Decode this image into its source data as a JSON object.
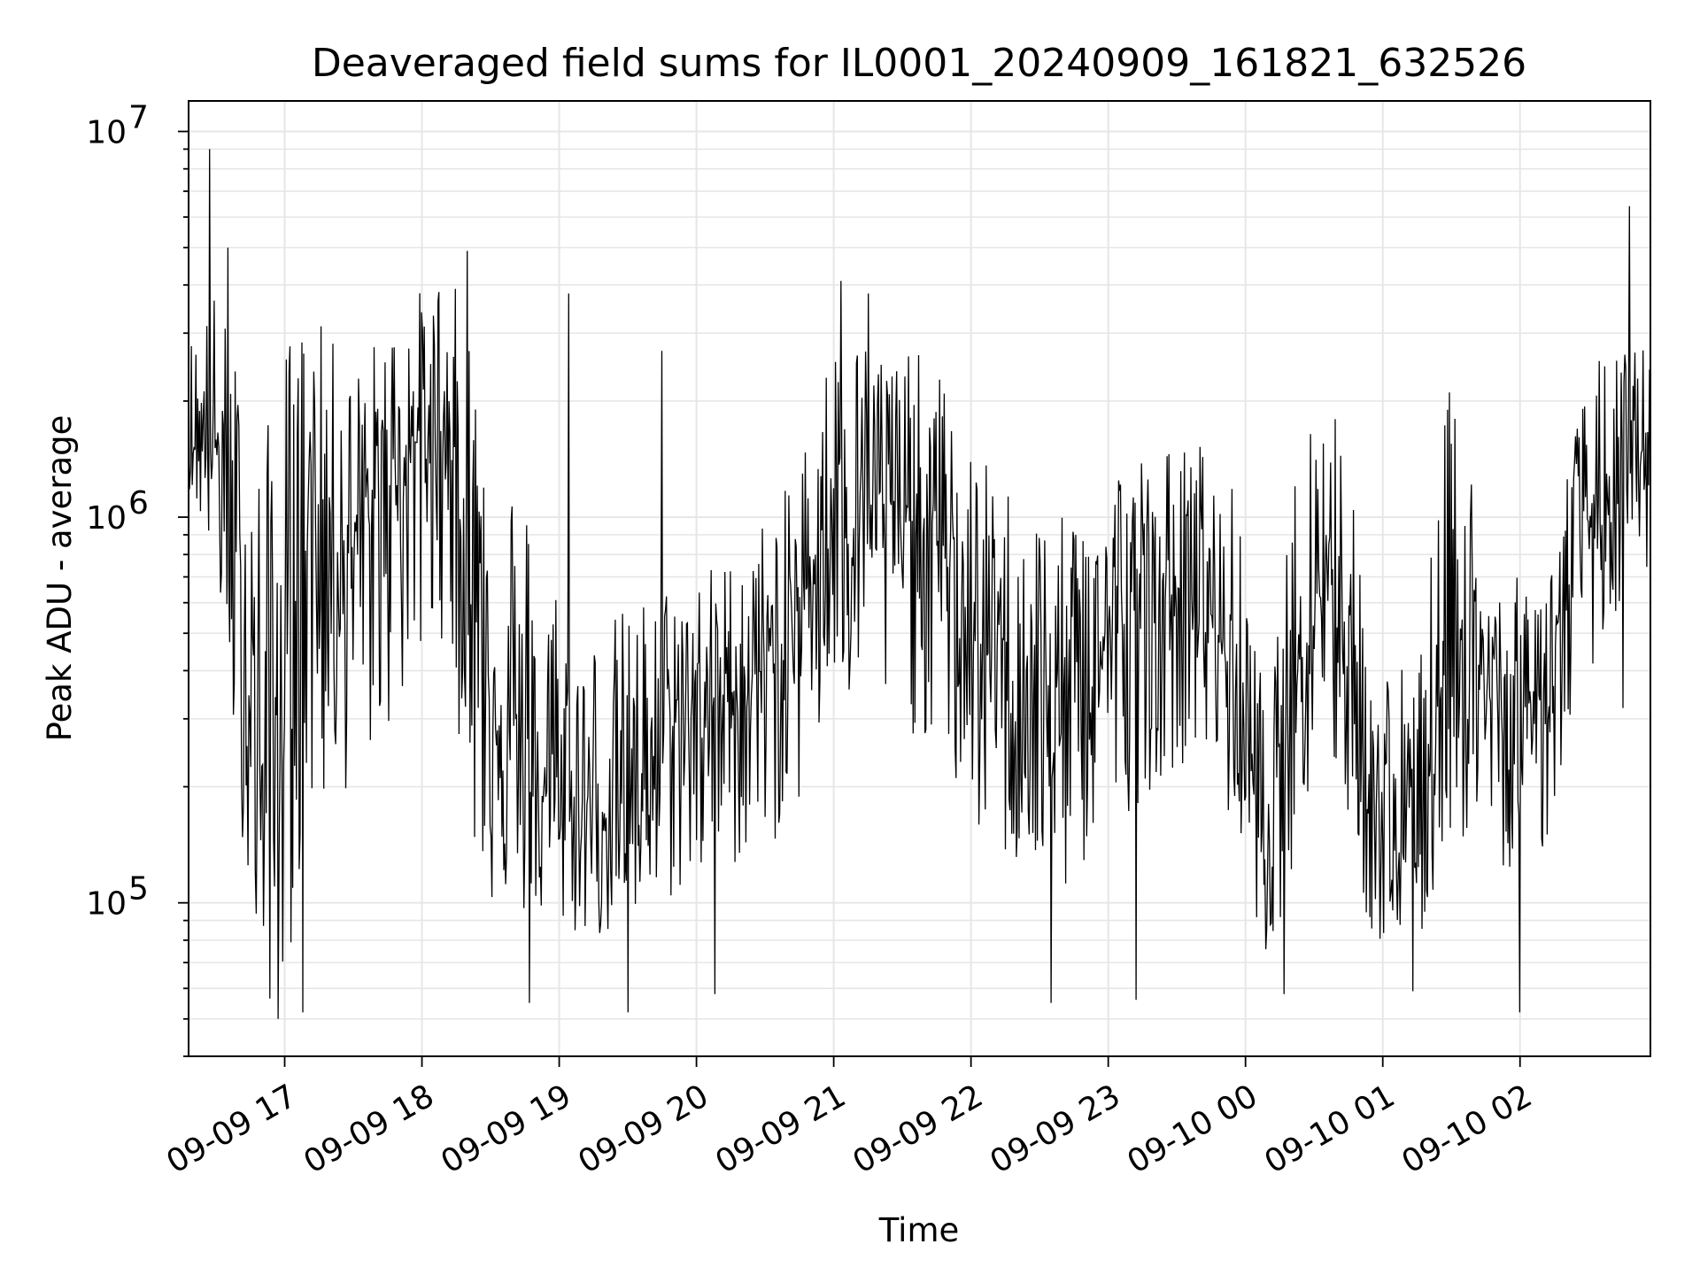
{
  "chart_data": {
    "type": "line",
    "title": "Deaveraged field sums for IL0001_20240909_161821_632526",
    "xlabel": "Time",
    "ylabel": "Peak ADU - average",
    "yscale": "log",
    "ylim": [
      40000,
      12000000
    ],
    "xlim": [
      "2024-09-09 16:18",
      "2024-09-10 02:57"
    ],
    "y_ticks": [
      {
        "base": "10",
        "exp": "5",
        "value": 100000
      },
      {
        "base": "10",
        "exp": "6",
        "value": 1000000
      },
      {
        "base": "10",
        "exp": "7",
        "value": 10000000
      }
    ],
    "x_ticks": [
      {
        "label": "09-09 17",
        "time": "2024-09-09 17:00"
      },
      {
        "label": "09-09 18",
        "time": "2024-09-09 18:00"
      },
      {
        "label": "09-09 19",
        "time": "2024-09-09 19:00"
      },
      {
        "label": "09-09 20",
        "time": "2024-09-09 20:00"
      },
      {
        "label": "09-09 21",
        "time": "2024-09-09 21:00"
      },
      {
        "label": "09-09 22",
        "time": "2024-09-09 22:00"
      },
      {
        "label": "09-09 23",
        "time": "2024-09-09 23:00"
      },
      {
        "label": "09-10 00",
        "time": "2024-09-10 00:00"
      },
      {
        "label": "09-10 01",
        "time": "2024-09-10 01:00"
      },
      {
        "label": "09-10 02",
        "time": "2024-09-10 02:00"
      }
    ],
    "grid": true,
    "line_color": "#000000",
    "series": [
      {
        "name": "",
        "envelope": [
          {
            "t": "2024-09-09 16:18",
            "lo": 1200000,
            "mid": 1600000,
            "hi": 3000000
          },
          {
            "t": "2024-09-09 16:30",
            "lo": 700000,
            "mid": 1500000,
            "hi": 4000000
          },
          {
            "t": "2024-09-09 16:40",
            "lo": 180000,
            "mid": 600000,
            "hi": 2500000
          },
          {
            "t": "2024-09-09 16:50",
            "lo": 50000,
            "mid": 200000,
            "hi": 1500000
          },
          {
            "t": "2024-09-09 17:00",
            "lo": 60000,
            "mid": 400000,
            "hi": 3000000
          },
          {
            "t": "2024-09-09 17:10",
            "lo": 150000,
            "mid": 1100000,
            "hi": 3500000
          },
          {
            "t": "2024-09-09 17:30",
            "lo": 200000,
            "mid": 800000,
            "hi": 2500000
          },
          {
            "t": "2024-09-09 17:50",
            "lo": 300000,
            "mid": 1500000,
            "hi": 3500000
          },
          {
            "t": "2024-09-09 18:10",
            "lo": 500000,
            "mid": 1700000,
            "hi": 4500000
          },
          {
            "t": "2024-09-09 18:25",
            "lo": 100000,
            "mid": 500000,
            "hi": 3000000
          },
          {
            "t": "2024-09-09 18:45",
            "lo": 90000,
            "mid": 200000,
            "hi": 1200000
          },
          {
            "t": "2024-09-09 19:10",
            "lo": 80000,
            "mid": 170000,
            "hi": 500000
          },
          {
            "t": "2024-09-09 19:30",
            "lo": 80000,
            "mid": 180000,
            "hi": 600000
          },
          {
            "t": "2024-09-09 19:50",
            "lo": 100000,
            "mid": 300000,
            "hi": 700000
          },
          {
            "t": "2024-09-09 20:15",
            "lo": 120000,
            "mid": 350000,
            "hi": 800000
          },
          {
            "t": "2024-09-09 20:40",
            "lo": 150000,
            "mid": 450000,
            "hi": 1200000
          },
          {
            "t": "2024-09-09 21:00",
            "lo": 300000,
            "mid": 1200000,
            "hi": 3000000
          },
          {
            "t": "2024-09-09 21:20",
            "lo": 300000,
            "mid": 1100000,
            "hi": 3000000
          },
          {
            "t": "2024-09-09 21:45",
            "lo": 250000,
            "mid": 900000,
            "hi": 2500000
          },
          {
            "t": "2024-09-09 22:00",
            "lo": 150000,
            "mid": 500000,
            "hi": 1500000
          },
          {
            "t": "2024-09-09 22:20",
            "lo": 120000,
            "mid": 350000,
            "hi": 1200000
          },
          {
            "t": "2024-09-09 22:40",
            "lo": 100000,
            "mid": 300000,
            "hi": 1000000
          },
          {
            "t": "2024-09-09 23:00",
            "lo": 150000,
            "mid": 500000,
            "hi": 1500000
          },
          {
            "t": "2024-09-09 23:20",
            "lo": 200000,
            "mid": 600000,
            "hi": 1500000
          },
          {
            "t": "2024-09-09 23:40",
            "lo": 250000,
            "mid": 650000,
            "hi": 1600000
          },
          {
            "t": "2024-09-09 23:55",
            "lo": 150000,
            "mid": 400000,
            "hi": 1200000
          },
          {
            "t": "2024-09-10 00:10",
            "lo": 70000,
            "mid": 120000,
            "hi": 300000
          },
          {
            "t": "2024-09-10 00:25",
            "lo": 150000,
            "mid": 600000,
            "hi": 2000000
          },
          {
            "t": "2024-09-10 00:40",
            "lo": 200000,
            "mid": 800000,
            "hi": 2200000
          },
          {
            "t": "2024-09-10 00:55",
            "lo": 80000,
            "mid": 150000,
            "hi": 500000
          },
          {
            "t": "2024-09-10 01:15",
            "lo": 70000,
            "mid": 130000,
            "hi": 400000
          },
          {
            "t": "2024-09-10 01:30",
            "lo": 150000,
            "mid": 600000,
            "hi": 2500000
          },
          {
            "t": "2024-09-10 01:50",
            "lo": 120000,
            "mid": 300000,
            "hi": 700000
          },
          {
            "t": "2024-09-10 02:10",
            "lo": 130000,
            "mid": 350000,
            "hi": 700000
          },
          {
            "t": "2024-09-10 02:30",
            "lo": 400000,
            "mid": 1000000,
            "hi": 2500000
          },
          {
            "t": "2024-09-10 02:57",
            "lo": 700000,
            "mid": 1200000,
            "hi": 3000000
          }
        ],
        "spikes": [
          {
            "t": "2024-09-09 16:27",
            "value": 9000000
          },
          {
            "t": "2024-09-09 16:35",
            "value": 5000000
          },
          {
            "t": "2024-09-09 16:57",
            "value": 50000
          },
          {
            "t": "2024-09-09 17:08",
            "value": 52000
          },
          {
            "t": "2024-09-09 18:20",
            "value": 4900000
          },
          {
            "t": "2024-09-09 18:47",
            "value": 55000
          },
          {
            "t": "2024-09-09 19:04",
            "value": 3800000
          },
          {
            "t": "2024-09-09 19:30",
            "value": 52000
          },
          {
            "t": "2024-09-09 19:45",
            "value": 2700000
          },
          {
            "t": "2024-09-09 20:08",
            "value": 58000
          },
          {
            "t": "2024-09-09 21:03",
            "value": 4100000
          },
          {
            "t": "2024-09-09 21:15",
            "value": 3800000
          },
          {
            "t": "2024-09-09 22:35",
            "value": 55000
          },
          {
            "t": "2024-09-09 23:12",
            "value": 56000
          },
          {
            "t": "2024-09-10 00:17",
            "value": 58000
          },
          {
            "t": "2024-09-10 01:13",
            "value": 59000
          },
          {
            "t": "2024-09-10 02:00",
            "value": 52000
          },
          {
            "t": "2024-09-10 02:48",
            "value": 6400000
          },
          {
            "t": "2024-09-10 02:45",
            "value": 320000
          }
        ]
      }
    ]
  }
}
